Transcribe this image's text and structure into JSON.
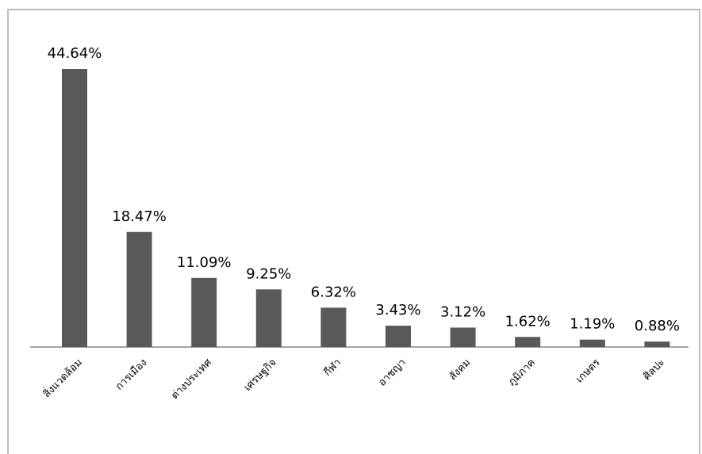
{
  "chart_data": {
    "type": "bar",
    "categories": [
      "สิ่งแวดล้อม",
      "การเมือง",
      "ต่างประเทศ",
      "เศรษฐกิจ",
      "กีฬา",
      "อาชญา",
      "สังคม",
      "ภูมิภาค",
      "เกษตร",
      "ศิลปะ"
    ],
    "values": [
      44.64,
      18.47,
      11.09,
      9.25,
      6.32,
      3.43,
      3.12,
      1.62,
      1.19,
      0.88
    ],
    "value_labels": [
      "44.64%",
      "18.47%",
      "11.09%",
      "9.25%",
      "6.32%",
      "3.43%",
      "3.12%",
      "1.62%",
      "1.19%",
      "0.88%"
    ],
    "color": "#595959"
  }
}
